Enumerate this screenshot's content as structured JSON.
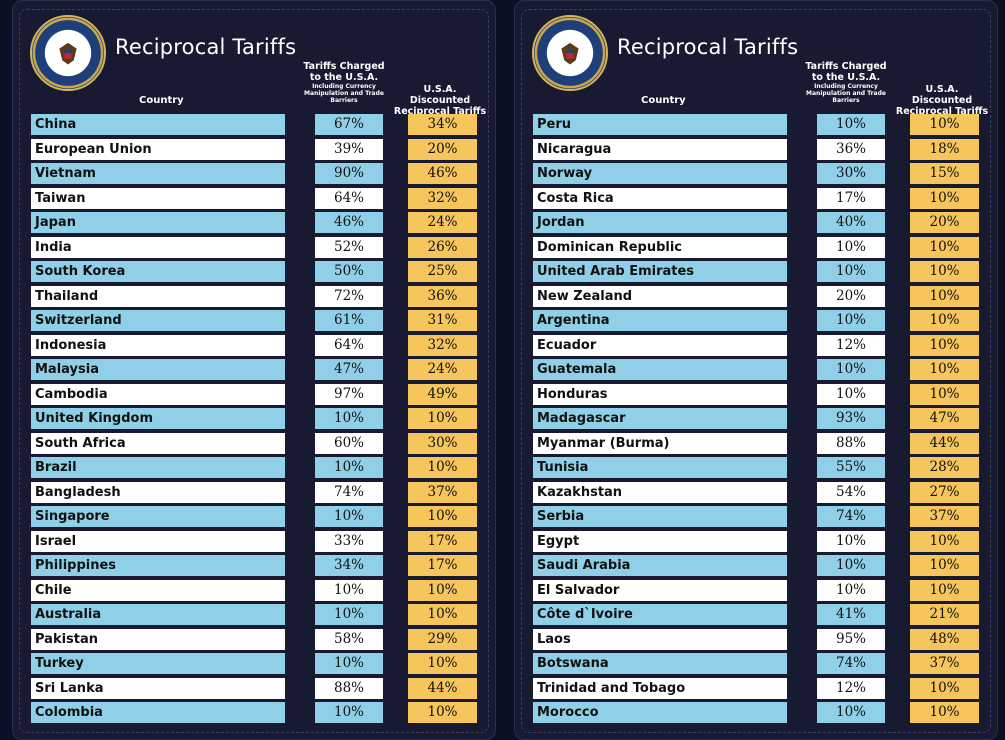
{
  "colors": {
    "background": "#171a31",
    "blue_row": "#8fd0e8",
    "white_row": "#ffffff",
    "gold": "#f6c55c"
  },
  "seal_icon": "presidential-seal",
  "seal_text": "SEAL OF THE PRESIDENT OF THE UNITED STATES",
  "panels": [
    {
      "title": "Reciprocal Tariffs",
      "headers": {
        "country": "Country",
        "charged_main": "Tariffs Charged to the U.S.A.",
        "charged_sub": "Including Currency Manipulation and Trade Barriers",
        "discount": "U.S.A. Discounted Reciprocal Tariffs"
      },
      "rows": [
        {
          "country": "China",
          "charged": "67%",
          "discount": "34%"
        },
        {
          "country": "European Union",
          "charged": "39%",
          "discount": "20%"
        },
        {
          "country": "Vietnam",
          "charged": "90%",
          "discount": "46%"
        },
        {
          "country": "Taiwan",
          "charged": "64%",
          "discount": "32%"
        },
        {
          "country": "Japan",
          "charged": "46%",
          "discount": "24%"
        },
        {
          "country": "India",
          "charged": "52%",
          "discount": "26%"
        },
        {
          "country": "South Korea",
          "charged": "50%",
          "discount": "25%"
        },
        {
          "country": "Thailand",
          "charged": "72%",
          "discount": "36%"
        },
        {
          "country": "Switzerland",
          "charged": "61%",
          "discount": "31%"
        },
        {
          "country": "Indonesia",
          "charged": "64%",
          "discount": "32%"
        },
        {
          "country": "Malaysia",
          "charged": "47%",
          "discount": "24%"
        },
        {
          "country": "Cambodia",
          "charged": "97%",
          "discount": "49%"
        },
        {
          "country": "United Kingdom",
          "charged": "10%",
          "discount": "10%"
        },
        {
          "country": "South Africa",
          "charged": "60%",
          "discount": "30%"
        },
        {
          "country": "Brazil",
          "charged": "10%",
          "discount": "10%"
        },
        {
          "country": "Bangladesh",
          "charged": "74%",
          "discount": "37%"
        },
        {
          "country": "Singapore",
          "charged": "10%",
          "discount": "10%"
        },
        {
          "country": "Israel",
          "charged": "33%",
          "discount": "17%"
        },
        {
          "country": "Philippines",
          "charged": "34%",
          "discount": "17%"
        },
        {
          "country": "Chile",
          "charged": "10%",
          "discount": "10%"
        },
        {
          "country": "Australia",
          "charged": "10%",
          "discount": "10%"
        },
        {
          "country": "Pakistan",
          "charged": "58%",
          "discount": "29%"
        },
        {
          "country": "Turkey",
          "charged": "10%",
          "discount": "10%"
        },
        {
          "country": "Sri Lanka",
          "charged": "88%",
          "discount": "44%"
        },
        {
          "country": "Colombia",
          "charged": "10%",
          "discount": "10%"
        }
      ]
    },
    {
      "title": "Reciprocal Tariffs",
      "headers": {
        "country": "Country",
        "charged_main": "Tariffs Charged to the U.S.A.",
        "charged_sub": "Including Currency Manipulation and Trade Barriers",
        "discount": "U.S.A. Discounted Reciprocal Tariffs"
      },
      "rows": [
        {
          "country": "Peru",
          "charged": "10%",
          "discount": "10%"
        },
        {
          "country": "Nicaragua",
          "charged": "36%",
          "discount": "18%"
        },
        {
          "country": "Norway",
          "charged": "30%",
          "discount": "15%"
        },
        {
          "country": "Costa Rica",
          "charged": "17%",
          "discount": "10%"
        },
        {
          "country": "Jordan",
          "charged": "40%",
          "discount": "20%"
        },
        {
          "country": "Dominican Republic",
          "charged": "10%",
          "discount": "10%"
        },
        {
          "country": "United Arab Emirates",
          "charged": "10%",
          "discount": "10%"
        },
        {
          "country": "New Zealand",
          "charged": "20%",
          "discount": "10%"
        },
        {
          "country": "Argentina",
          "charged": "10%",
          "discount": "10%"
        },
        {
          "country": "Ecuador",
          "charged": "12%",
          "discount": "10%"
        },
        {
          "country": "Guatemala",
          "charged": "10%",
          "discount": "10%"
        },
        {
          "country": "Honduras",
          "charged": "10%",
          "discount": "10%"
        },
        {
          "country": "Madagascar",
          "charged": "93%",
          "discount": "47%"
        },
        {
          "country": "Myanmar (Burma)",
          "charged": "88%",
          "discount": "44%"
        },
        {
          "country": "Tunisia",
          "charged": "55%",
          "discount": "28%"
        },
        {
          "country": "Kazakhstan",
          "charged": "54%",
          "discount": "27%"
        },
        {
          "country": "Serbia",
          "charged": "74%",
          "discount": "37%"
        },
        {
          "country": "Egypt",
          "charged": "10%",
          "discount": "10%"
        },
        {
          "country": "Saudi Arabia",
          "charged": "10%",
          "discount": "10%"
        },
        {
          "country": "El Salvador",
          "charged": "10%",
          "discount": "10%"
        },
        {
          "country": "Côte d`Ivoire",
          "charged": "41%",
          "discount": "21%"
        },
        {
          "country": "Laos",
          "charged": "95%",
          "discount": "48%"
        },
        {
          "country": "Botswana",
          "charged": "74%",
          "discount": "37%"
        },
        {
          "country": "Trinidad and Tobago",
          "charged": "12%",
          "discount": "10%"
        },
        {
          "country": "Morocco",
          "charged": "10%",
          "discount": "10%"
        }
      ]
    }
  ]
}
